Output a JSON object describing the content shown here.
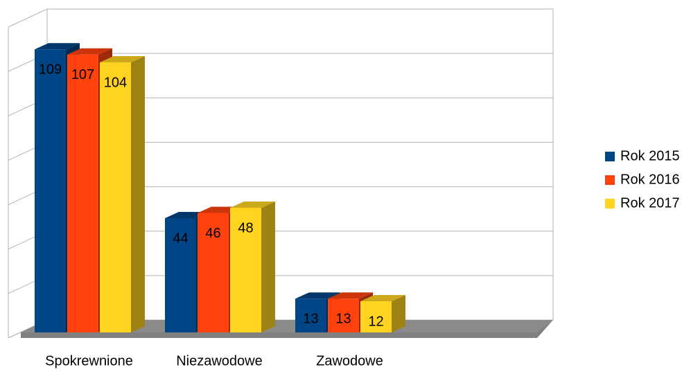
{
  "chart_data": {
    "type": "bar3d",
    "categories": [
      "Spokrewnione",
      "Niezawodowe",
      "Zawodowe"
    ],
    "series": [
      {
        "name": "Rok 2015",
        "color": "#004586",
        "values": [
          109,
          44,
          13
        ]
      },
      {
        "name": "Rok 2016",
        "color": "#ff420e",
        "values": [
          107,
          46,
          13
        ]
      },
      {
        "name": "Rok 2017",
        "color": "#ffd320",
        "values": [
          104,
          48,
          12
        ]
      }
    ],
    "ylim": [
      0,
      140
    ],
    "yticks": [
      0,
      20,
      40,
      60,
      80,
      100,
      120,
      140
    ],
    "grid": true,
    "legend": "right"
  }
}
